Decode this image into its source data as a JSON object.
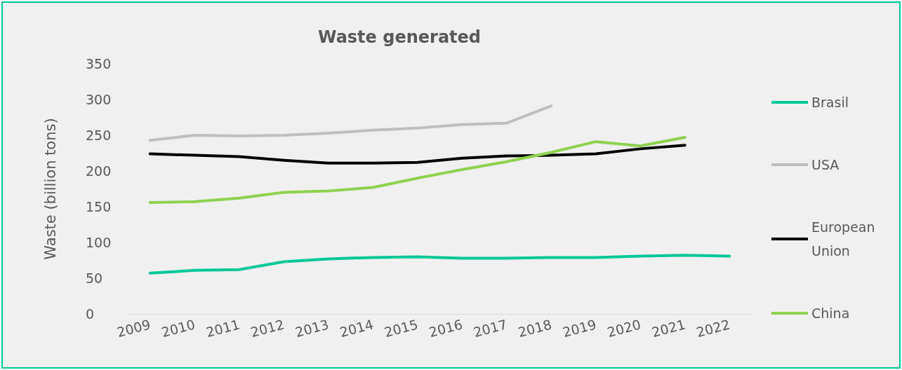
{
  "chart_data": {
    "type": "line",
    "title": "Waste generated",
    "ylabel": "Waste (billion tons)",
    "categories": [
      "2009",
      "2010",
      "2011",
      "2012",
      "2013",
      "2014",
      "2015",
      "2016",
      "2017",
      "2018",
      "2019",
      "2020",
      "2021",
      "2022"
    ],
    "series": [
      {
        "name": "Brasil",
        "color": "#00c896",
        "values": [
          57,
          61,
          62,
          73,
          77,
          79,
          80,
          78,
          78,
          79,
          79,
          81,
          82,
          81
        ]
      },
      {
        "name": "USA",
        "color": "#bfbfbf",
        "values": [
          243,
          250,
          249,
          250,
          253,
          257,
          260,
          265,
          267,
          291,
          null,
          null,
          null,
          null
        ]
      },
      {
        "name": "European Union",
        "color": "#000000",
        "values": [
          224,
          222,
          220,
          215,
          211,
          211,
          212,
          218,
          221,
          222,
          224,
          231,
          236,
          null
        ]
      },
      {
        "name": "China",
        "color": "#8fd14f",
        "values": [
          156,
          157,
          162,
          170,
          172,
          177,
          190,
          202,
          213,
          226,
          241,
          235,
          247,
          null
        ]
      }
    ],
    "ylim": [
      0,
      350
    ],
    "yticks": [
      0,
      50,
      100,
      150,
      200,
      250,
      300,
      350
    ],
    "grid": false,
    "legend": "right",
    "marker": "none",
    "line_style": "solid"
  }
}
